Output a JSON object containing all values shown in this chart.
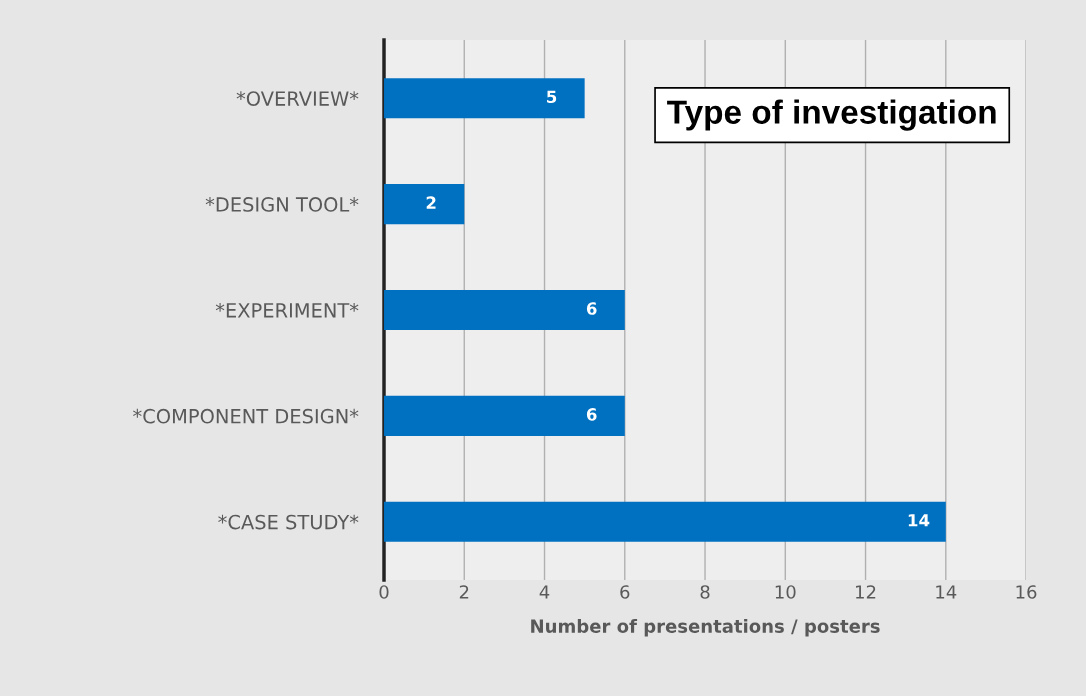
{
  "chart_data": {
    "type": "bar",
    "orientation": "horizontal",
    "title": "Type of investigation",
    "xlabel": "Number of presentations / posters",
    "categories": [
      "*OVERVIEW*",
      "*DESIGN TOOL*",
      "*EXPERIMENT*",
      "*COMPONENT DESIGN*",
      "*CASE STUDY*"
    ],
    "values": [
      5,
      2,
      6,
      6,
      14
    ],
    "color": "#0070c0",
    "data_labels": true,
    "xlim": [
      0,
      16
    ],
    "xticks": [
      0,
      2,
      4,
      6,
      8,
      10,
      12,
      14,
      16
    ],
    "grid": "x",
    "legend": false
  }
}
